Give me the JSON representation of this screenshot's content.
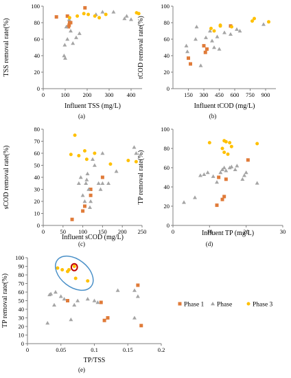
{
  "colors": {
    "phase1": "#e07b39",
    "phase2": "#a5a5a5",
    "phase3": "#ffc000",
    "annotation_ellipse": "#4a90c8",
    "annotation_circle": "#c00000",
    "axis": "#7f7f7f"
  },
  "legend": {
    "position": "right of panel e",
    "items": [
      {
        "label": "Phase 1",
        "color": "#e07b39",
        "marker": "square"
      },
      {
        "label": "Phase",
        "color": "#a5a5a5",
        "marker": "triangle"
      },
      {
        "label": "Phase 3",
        "color": "#ffc000",
        "marker": "circle"
      }
    ]
  },
  "chart_data": [
    {
      "type": "scatter",
      "panel": "(a)",
      "xlabel": "Influent TSS (mg/L)",
      "ylabel": "TSS removal rate(%)",
      "xlim": [
        0,
        450
      ],
      "ylim": [
        0,
        100
      ],
      "xticks": [
        0,
        100,
        200,
        300,
        400
      ],
      "yticks": [
        0,
        20,
        40,
        60,
        80,
        100
      ],
      "series": [
        {
          "marker": "square",
          "color": "#e07b39",
          "points": [
            [
              60,
              87
            ],
            [
              110,
              88
            ],
            [
              115,
              75
            ],
            [
              118,
              77
            ],
            [
              120,
              80
            ],
            [
              125,
              80
            ],
            [
              190,
              98
            ]
          ]
        },
        {
          "marker": "triangle",
          "color": "#a5a5a5",
          "points": [
            [
              95,
              40
            ],
            [
              98,
              53
            ],
            [
              100,
              37
            ],
            [
              105,
              75
            ],
            [
              110,
              60
            ],
            [
              118,
              84
            ],
            [
              125,
              70
            ],
            [
              135,
              55
            ],
            [
              150,
              62
            ],
            [
              165,
              67
            ],
            [
              240,
              90
            ],
            [
              270,
              93
            ],
            [
              320,
              93
            ],
            [
              370,
              85
            ],
            [
              380,
              88
            ],
            [
              400,
              84
            ]
          ]
        },
        {
          "marker": "circle",
          "color": "#ffc000",
          "points": [
            [
              120,
              86
            ],
            [
              155,
              88
            ],
            [
              185,
              91
            ],
            [
              205,
              90
            ],
            [
              235,
              88
            ],
            [
              255,
              86
            ],
            [
              285,
              90
            ],
            [
              425,
              92
            ],
            [
              435,
              91
            ]
          ]
        }
      ]
    },
    {
      "type": "scatter",
      "panel": "(b)",
      "xlabel": "Influent tCOD (mg/L)",
      "ylabel": "tCOD removal rate(%)",
      "xlim": [
        0,
        1000
      ],
      "ylim": [
        0,
        100
      ],
      "xticks": [
        150,
        300,
        450,
        600,
        750,
        900
      ],
      "yticks": [
        0,
        20,
        40,
        60,
        80,
        100
      ],
      "series": [
        {
          "marker": "square",
          "color": "#e07b39",
          "points": [
            [
              150,
              37
            ],
            [
              170,
              30
            ],
            [
              300,
              52
            ],
            [
              315,
              44
            ],
            [
              330,
              48
            ],
            [
              560,
              76
            ]
          ]
        },
        {
          "marker": "triangle",
          "color": "#a5a5a5",
          "points": [
            [
              130,
              52
            ],
            [
              140,
              45
            ],
            [
              220,
              60
            ],
            [
              230,
              75
            ],
            [
              270,
              28
            ],
            [
              320,
              62
            ],
            [
              360,
              70
            ],
            [
              380,
              58
            ],
            [
              400,
              50
            ],
            [
              430,
              63
            ],
            [
              450,
              48
            ],
            [
              500,
              68
            ],
            [
              560,
              66
            ],
            [
              620,
              72
            ],
            [
              650,
              70
            ],
            [
              880,
              78
            ]
          ]
        },
        {
          "marker": "circle",
          "color": "#ffc000",
          "points": [
            [
              370,
              73
            ],
            [
              400,
              70
            ],
            [
              460,
              77
            ],
            [
              460,
              76
            ],
            [
              570,
              75
            ],
            [
              770,
              82
            ],
            [
              790,
              85
            ],
            [
              930,
              81
            ]
          ]
        }
      ]
    },
    {
      "type": "scatter",
      "panel": "(c)",
      "xlabel": "Influent sCOD (mg/L)",
      "ylabel": "sCOD removal rate(%)",
      "xlim": [
        0,
        250
      ],
      "ylim": [
        0,
        80
      ],
      "xticks": [
        0,
        50,
        100,
        150,
        200,
        250
      ],
      "yticks": [
        0,
        10,
        20,
        30,
        40,
        50,
        60,
        70,
        80
      ],
      "series": [
        {
          "marker": "square",
          "color": "#e07b39",
          "points": [
            [
              73,
              5
            ],
            [
              100,
              12
            ],
            [
              105,
              16
            ],
            [
              120,
              30
            ],
            [
              120,
              25
            ],
            [
              150,
              40
            ]
          ]
        },
        {
          "marker": "triangle",
          "color": "#a5a5a5",
          "points": [
            [
              90,
              35
            ],
            [
              95,
              40
            ],
            [
              100,
              25
            ],
            [
              105,
              20
            ],
            [
              108,
              35
            ],
            [
              110,
              38
            ],
            [
              112,
              43
            ],
            [
              115,
              30
            ],
            [
              118,
              15
            ],
            [
              120,
              20
            ],
            [
              125,
              55
            ],
            [
              130,
              50
            ],
            [
              140,
              35
            ],
            [
              145,
              30
            ],
            [
              150,
              60
            ],
            [
              150,
              35
            ],
            [
              165,
              35
            ],
            [
              185,
              45
            ],
            [
              230,
              65
            ],
            [
              235,
              60
            ]
          ]
        },
        {
          "marker": "circle",
          "color": "#ffc000",
          "points": [
            [
              70,
              59
            ],
            [
              80,
              75
            ],
            [
              90,
              58
            ],
            [
              105,
              62
            ],
            [
              110,
              55
            ],
            [
              130,
              60
            ],
            [
              170,
              51
            ],
            [
              215,
              54
            ],
            [
              235,
              53
            ]
          ]
        }
      ]
    },
    {
      "type": "scatter",
      "panel": "(d)",
      "xlabel": "Influent TP (mg/L)",
      "ylabel": "TP removal rate(%)",
      "xlim": [
        0,
        30
      ],
      "ylim": [
        0,
        100
      ],
      "xticks": [
        0,
        10,
        20,
        30
      ],
      "yticks": [
        0,
        20,
        40,
        60,
        80,
        100
      ],
      "series": [
        {
          "marker": "square",
          "color": "#e07b39",
          "points": [
            [
              12,
              21
            ],
            [
              12.5,
              50
            ],
            [
              13.5,
              27
            ],
            [
              14,
              30
            ],
            [
              14.5,
              48
            ],
            [
              20.5,
              68
            ]
          ]
        },
        {
          "marker": "triangle",
          "color": "#a5a5a5",
          "points": [
            [
              3,
              24
            ],
            [
              6,
              29
            ],
            [
              7.5,
              52
            ],
            [
              8.5,
              53
            ],
            [
              9.5,
              55
            ],
            [
              11,
              51
            ],
            [
              12,
              45
            ],
            [
              13,
              55
            ],
            [
              13.5,
              58
            ],
            [
              14,
              60
            ],
            [
              14.5,
              57
            ],
            [
              15.5,
              60
            ],
            [
              16,
              61
            ],
            [
              17,
              58
            ],
            [
              17.5,
              62
            ],
            [
              19,
              48
            ],
            [
              19.5,
              52
            ],
            [
              20,
              55
            ],
            [
              23,
              44
            ]
          ]
        },
        {
          "marker": "circle",
          "color": "#ffc000",
          "points": [
            [
              10,
              86
            ],
            [
              13.5,
              80
            ],
            [
              14,
              88
            ],
            [
              14.5,
              87
            ],
            [
              14,
              76
            ],
            [
              15,
              74
            ],
            [
              15.5,
              86
            ],
            [
              16,
              82
            ],
            [
              23,
              85
            ]
          ]
        }
      ]
    },
    {
      "type": "scatter",
      "panel": "(e)",
      "xlabel": "TP/TSS",
      "ylabel": "TP removal rate(%)",
      "xlim": [
        0,
        0.2
      ],
      "ylim": [
        0,
        100
      ],
      "xticks": [
        0,
        0.05,
        0.1,
        0.15,
        0.2
      ],
      "yticks": [
        0,
        10,
        20,
        30,
        40,
        50,
        60,
        70,
        80,
        90,
        100
      ],
      "series": [
        {
          "marker": "square",
          "color": "#e07b39",
          "points": [
            [
              0.06,
              50
            ],
            [
              0.11,
              48
            ],
            [
              0.115,
              27
            ],
            [
              0.12,
              30
            ],
            [
              0.165,
              68
            ],
            [
              0.17,
              21
            ]
          ]
        },
        {
          "marker": "triangle",
          "color": "#a5a5a5",
          "points": [
            [
              0.03,
              24
            ],
            [
              0.033,
              57
            ],
            [
              0.035,
              58
            ],
            [
              0.04,
              45
            ],
            [
              0.042,
              60
            ],
            [
              0.05,
              55
            ],
            [
              0.055,
              52
            ],
            [
              0.065,
              28
            ],
            [
              0.07,
              45
            ],
            [
              0.075,
              50
            ],
            [
              0.09,
              52
            ],
            [
              0.1,
              50
            ],
            [
              0.105,
              48
            ],
            [
              0.135,
              62
            ],
            [
              0.16,
              62
            ],
            [
              0.16,
              30
            ],
            [
              0.165,
              55
            ]
          ]
        },
        {
          "marker": "circle",
          "color": "#ffc000",
          "points": [
            [
              0.045,
              88
            ],
            [
              0.052,
              86
            ],
            [
              0.06,
              84
            ],
            [
              0.062,
              86
            ],
            [
              0.07,
              90
            ],
            [
              0.072,
              76
            ],
            [
              0.09,
              73
            ]
          ]
        }
      ],
      "annotations": [
        {
          "shape": "ellipse",
          "color": "#4a90c8",
          "center": [
            0.07,
            82
          ],
          "rx": 0.032,
          "ry": 16
        },
        {
          "shape": "circle",
          "color": "#c00000",
          "center": [
            0.07,
            89
          ],
          "rx": 0.0045,
          "ry": 4
        }
      ]
    }
  ]
}
